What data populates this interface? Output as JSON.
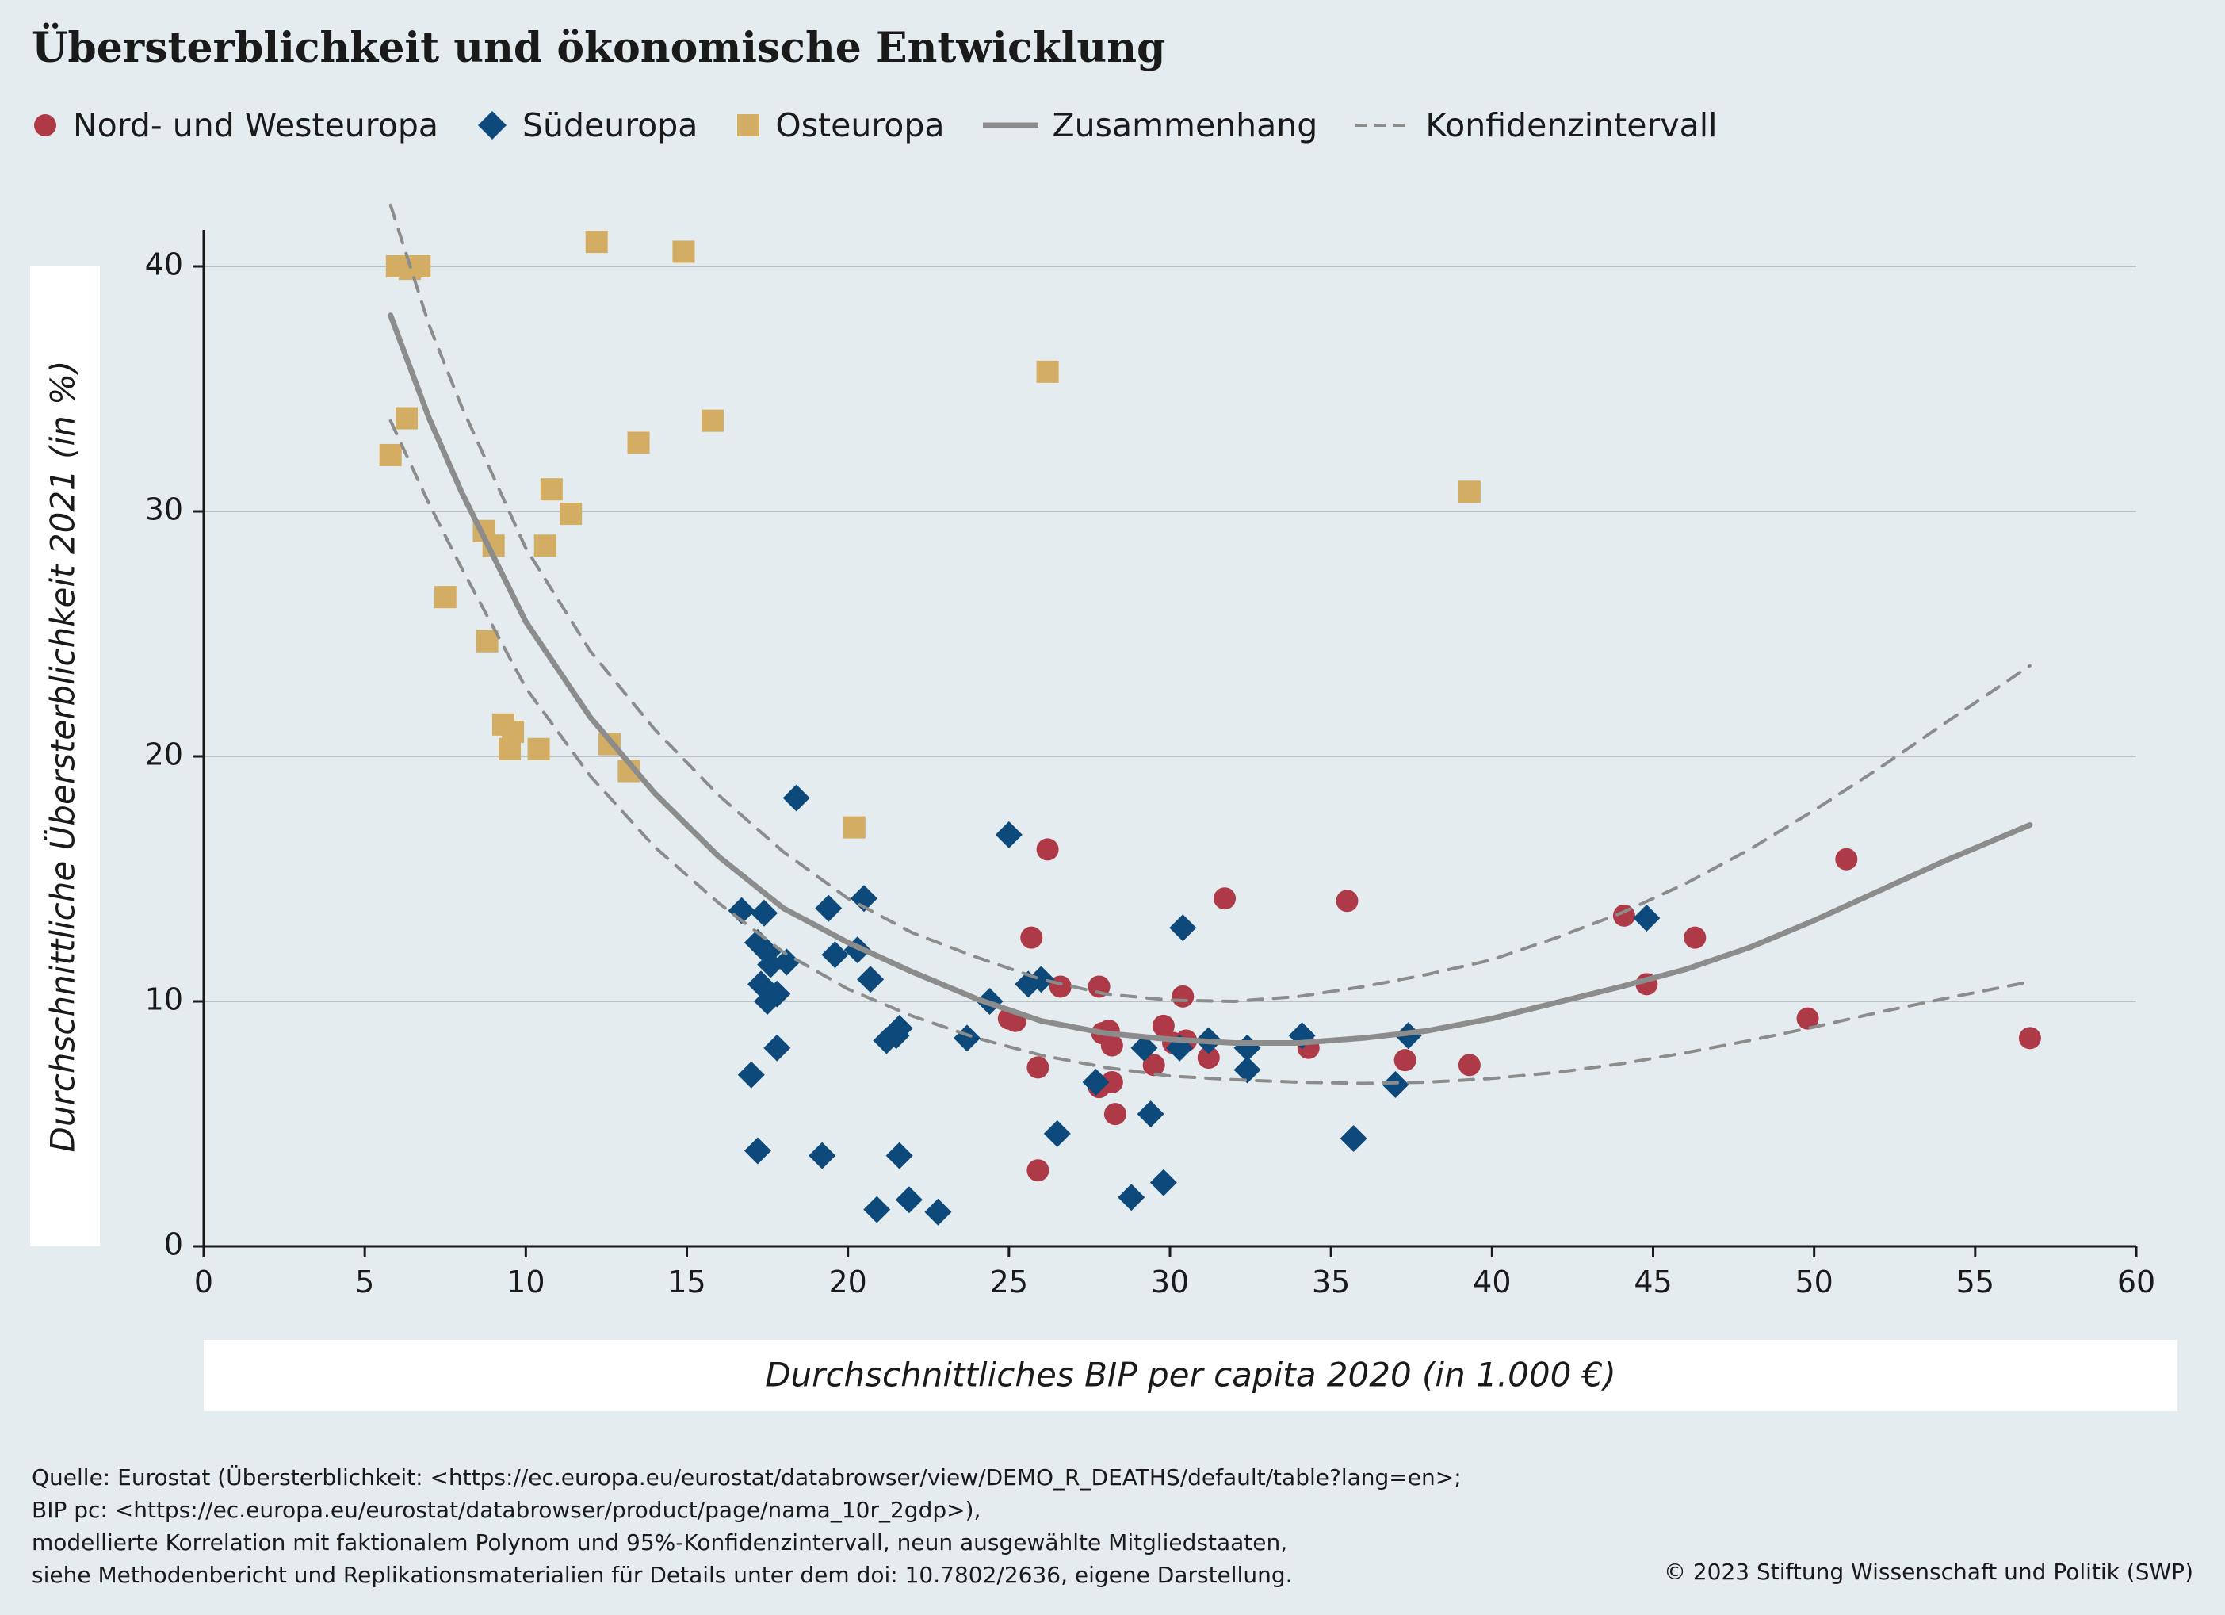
{
  "title": "Übersterblichkeit und ökonomische Entwicklung",
  "legend": {
    "nord": "Nord- und Westeuropa",
    "sued": "Südeuropa",
    "ost": "Osteuropa",
    "fit": "Zusammenhang",
    "ci": "Konfidenzintervall"
  },
  "colors": {
    "nord": "#ae3a48",
    "sued": "#0d4a7b",
    "ost": "#d3ad63",
    "fit": "#8c8c8c",
    "background": "#e4ecef"
  },
  "chart_data": {
    "type": "scatter",
    "xlabel": "Durchschnittliches BIP per capita 2020 (in 1.000 €)",
    "ylabel": "Durchschnittliche Übersterblichkeit 2021 (in %)",
    "xlim": [
      0,
      60
    ],
    "ylim": [
      0,
      40
    ],
    "xticks": [
      "0",
      "5",
      "10",
      "15",
      "20",
      "25",
      "30",
      "35",
      "40",
      "45",
      "50",
      "55",
      "60"
    ],
    "yticks": [
      "0",
      "10",
      "20",
      "30",
      "40"
    ],
    "grid": "horizontal",
    "legend_position": "top",
    "series": [
      {
        "key": "nord",
        "name": "Nord- und Westeuropa",
        "marker": "circle",
        "points": [
          [
            25.0,
            9.3
          ],
          [
            25.2,
            9.2
          ],
          [
            25.7,
            12.6
          ],
          [
            25.9,
            7.3
          ],
          [
            25.9,
            3.1
          ],
          [
            26.2,
            16.2
          ],
          [
            26.6,
            10.6
          ],
          [
            27.8,
            10.6
          ],
          [
            27.8,
            6.5
          ],
          [
            27.9,
            8.7
          ],
          [
            28.1,
            8.8
          ],
          [
            28.2,
            8.2
          ],
          [
            28.2,
            6.7
          ],
          [
            28.3,
            5.4
          ],
          [
            29.5,
            7.4
          ],
          [
            29.8,
            9.0
          ],
          [
            30.1,
            8.3
          ],
          [
            30.4,
            10.2
          ],
          [
            30.5,
            8.4
          ],
          [
            31.2,
            7.7
          ],
          [
            31.7,
            14.2
          ],
          [
            34.3,
            8.1
          ],
          [
            35.5,
            14.1
          ],
          [
            37.3,
            7.6
          ],
          [
            39.3,
            7.4
          ],
          [
            44.1,
            13.5
          ],
          [
            44.8,
            10.7
          ],
          [
            46.3,
            12.6
          ],
          [
            49.8,
            9.3
          ],
          [
            51.0,
            15.8
          ],
          [
            56.7,
            8.5
          ]
        ]
      },
      {
        "key": "sued",
        "name": "Südeuropa",
        "marker": "diamond",
        "points": [
          [
            16.7,
            13.7
          ],
          [
            17.0,
            7.0
          ],
          [
            17.2,
            3.9
          ],
          [
            17.2,
            12.4
          ],
          [
            17.3,
            10.7
          ],
          [
            17.4,
            13.6
          ],
          [
            17.5,
            12.0
          ],
          [
            17.5,
            10.0
          ],
          [
            17.6,
            11.5
          ],
          [
            17.8,
            8.1
          ],
          [
            17.8,
            10.3
          ],
          [
            18.1,
            11.6
          ],
          [
            18.4,
            18.3
          ],
          [
            19.2,
            3.7
          ],
          [
            19.4,
            13.8
          ],
          [
            19.6,
            11.9
          ],
          [
            20.3,
            12.1
          ],
          [
            20.5,
            14.2
          ],
          [
            20.7,
            10.9
          ],
          [
            20.9,
            1.5
          ],
          [
            21.2,
            8.4
          ],
          [
            21.5,
            8.6
          ],
          [
            21.6,
            8.9
          ],
          [
            21.6,
            3.7
          ],
          [
            21.9,
            1.9
          ],
          [
            22.8,
            1.4
          ],
          [
            23.7,
            8.5
          ],
          [
            24.4,
            10.0
          ],
          [
            25.0,
            16.8
          ],
          [
            25.6,
            10.7
          ],
          [
            26.0,
            10.9
          ],
          [
            26.5,
            4.6
          ],
          [
            27.7,
            6.7
          ],
          [
            28.8,
            2.0
          ],
          [
            29.2,
            8.1
          ],
          [
            29.4,
            5.4
          ],
          [
            29.8,
            2.6
          ],
          [
            30.3,
            8.1
          ],
          [
            30.4,
            13.0
          ],
          [
            31.2,
            8.4
          ],
          [
            32.4,
            7.2
          ],
          [
            32.4,
            8.1
          ],
          [
            34.1,
            8.6
          ],
          [
            35.7,
            4.4
          ],
          [
            37.0,
            6.6
          ],
          [
            37.4,
            8.6
          ],
          [
            44.8,
            13.4
          ]
        ]
      },
      {
        "key": "ost",
        "name": "Osteuropa",
        "marker": "square",
        "points": [
          [
            5.8,
            32.3
          ],
          [
            6.0,
            40.0
          ],
          [
            6.3,
            33.8
          ],
          [
            6.4,
            39.9
          ],
          [
            6.7,
            40.0
          ],
          [
            7.5,
            26.5
          ],
          [
            8.7,
            29.2
          ],
          [
            8.8,
            24.7
          ],
          [
            9.0,
            28.6
          ],
          [
            9.3,
            21.3
          ],
          [
            9.5,
            20.3
          ],
          [
            9.6,
            21.0
          ],
          [
            10.4,
            20.3
          ],
          [
            10.6,
            28.6
          ],
          [
            10.8,
            30.9
          ],
          [
            11.4,
            29.9
          ],
          [
            12.2,
            41.0
          ],
          [
            12.6,
            20.5
          ],
          [
            13.2,
            19.4
          ],
          [
            13.5,
            32.8
          ],
          [
            14.9,
            40.6
          ],
          [
            15.8,
            33.7
          ],
          [
            20.2,
            17.1
          ],
          [
            26.2,
            35.7
          ],
          [
            39.3,
            30.8
          ]
        ]
      }
    ],
    "fit": {
      "name": "Zusammenhang",
      "points": [
        [
          5.8,
          38.0
        ],
        [
          7,
          33.8
        ],
        [
          8,
          30.8
        ],
        [
          10,
          25.5
        ],
        [
          12,
          21.6
        ],
        [
          14,
          18.5
        ],
        [
          16,
          15.9
        ],
        [
          18,
          13.8
        ],
        [
          20,
          12.4
        ],
        [
          22,
          11.2
        ],
        [
          24,
          10.1
        ],
        [
          26,
          9.2
        ],
        [
          28,
          8.7
        ],
        [
          30,
          8.45
        ],
        [
          32,
          8.3
        ],
        [
          34,
          8.3
        ],
        [
          36,
          8.5
        ],
        [
          38,
          8.8
        ],
        [
          40,
          9.3
        ],
        [
          42,
          9.95
        ],
        [
          44,
          10.6
        ],
        [
          46,
          11.3
        ],
        [
          48,
          12.2
        ],
        [
          50,
          13.3
        ],
        [
          52,
          14.5
        ],
        [
          54,
          15.7
        ],
        [
          56.7,
          17.2
        ]
      ]
    },
    "ci_upper": {
      "name": "Konfidenzintervall",
      "points": [
        [
          5.8,
          42.5
        ],
        [
          7,
          37.6
        ],
        [
          8,
          34.3
        ],
        [
          10,
          28.5
        ],
        [
          12,
          24.3
        ],
        [
          14,
          21.1
        ],
        [
          16,
          18.4
        ],
        [
          18,
          16.1
        ],
        [
          20,
          14.2
        ],
        [
          22,
          12.8
        ],
        [
          24,
          11.8
        ],
        [
          26,
          10.9
        ],
        [
          28,
          10.3
        ],
        [
          30,
          10.05
        ],
        [
          32,
          10.0
        ],
        [
          34,
          10.2
        ],
        [
          36,
          10.6
        ],
        [
          38,
          11.1
        ],
        [
          40,
          11.7
        ],
        [
          42,
          12.6
        ],
        [
          44,
          13.6
        ],
        [
          46,
          14.8
        ],
        [
          48,
          16.2
        ],
        [
          50,
          17.8
        ],
        [
          52,
          19.5
        ],
        [
          54,
          21.3
        ],
        [
          56.7,
          23.7
        ]
      ]
    },
    "ci_lower": {
      "name": "Konfidenzintervall",
      "points": [
        [
          5.8,
          33.7
        ],
        [
          7,
          30.3
        ],
        [
          8,
          27.7
        ],
        [
          10,
          22.8
        ],
        [
          12,
          19.2
        ],
        [
          14,
          16.3
        ],
        [
          16,
          14.0
        ],
        [
          18,
          12.0
        ],
        [
          20,
          10.5
        ],
        [
          22,
          9.4
        ],
        [
          24,
          8.5
        ],
        [
          26,
          7.8
        ],
        [
          28,
          7.3
        ],
        [
          30,
          6.95
        ],
        [
          32,
          6.8
        ],
        [
          34,
          6.7
        ],
        [
          36,
          6.65
        ],
        [
          38,
          6.7
        ],
        [
          40,
          6.85
        ],
        [
          42,
          7.1
        ],
        [
          44,
          7.45
        ],
        [
          46,
          7.9
        ],
        [
          48,
          8.4
        ],
        [
          50,
          8.95
        ],
        [
          52,
          9.55
        ],
        [
          54,
          10.1
        ],
        [
          56.7,
          10.8
        ]
      ]
    }
  },
  "source": {
    "line1": "Quelle: Eurostat (Übersterblichkeit: <https://ec.europa.eu/eurostat/databrowser/view/DEMO_R_DEATHS/default/table?lang=en>;",
    "line2": "BIP pc: <https://ec.europa.eu/eurostat/databrowser/product/page/nama_10r_2gdp>),",
    "line3": "modellierte Korrelation mit faktionalem Polynom und 95%-Konfidenzintervall, neun ausgewählte Mitgliedstaaten,",
    "line4": "siehe Methodenbericht und Replikationsmaterialien für Details unter dem doi: 10.7802/2636, eigene Darstellung."
  },
  "copyright": "© 2023 Stiftung Wissenschaft und Politik (SWP)"
}
